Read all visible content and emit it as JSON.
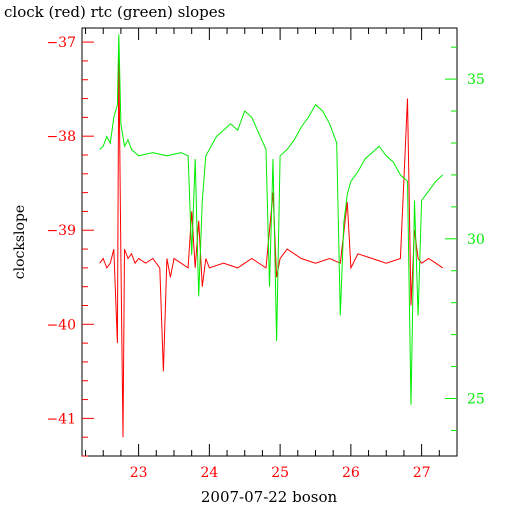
{
  "chart_data": {
    "type": "line",
    "title": "clock (red) rtc (green) slopes",
    "xlabel": "2007-07-22 boson",
    "ylabel": "clockslope",
    "x_ticks": [
      "23",
      "24",
      "25",
      "26",
      "27"
    ],
    "xlim": [
      22.2,
      27.5
    ],
    "y_left_ticks": [
      "−37",
      "−38",
      "−39",
      "−40",
      "−41"
    ],
    "ylim_left": [
      -41.4,
      -36.85
    ],
    "y_right_ticks": [
      "35",
      "30",
      "25"
    ],
    "ylim_right": [
      23.2,
      36.6
    ],
    "colors": {
      "clock": "#ff0000",
      "rtc": "#00ee00",
      "axis": "#000000"
    },
    "series": [
      {
        "name": "clock (red)",
        "axis": "left",
        "color": "#ff0000",
        "x": [
          22.45,
          22.5,
          22.55,
          22.6,
          22.65,
          22.7,
          22.72,
          22.75,
          22.78,
          22.8,
          22.85,
          22.9,
          22.95,
          23.0,
          23.1,
          23.2,
          23.3,
          23.35,
          23.4,
          23.45,
          23.5,
          23.6,
          23.7,
          23.75,
          23.8,
          23.85,
          23.9,
          23.95,
          24.0,
          24.2,
          24.4,
          24.5,
          24.6,
          24.8,
          24.9,
          24.95,
          25.0,
          25.1,
          25.3,
          25.5,
          25.7,
          25.85,
          25.95,
          26.0,
          26.1,
          26.3,
          26.5,
          26.7,
          26.8,
          26.85,
          26.9,
          26.95,
          27.0,
          27.1,
          27.2,
          27.3
        ],
        "y": [
          -39.35,
          -39.3,
          -39.4,
          -39.35,
          -39.2,
          -40.2,
          -37.1,
          -39.3,
          -41.2,
          -39.2,
          -39.3,
          -39.25,
          -39.35,
          -39.3,
          -39.35,
          -39.3,
          -39.4,
          -40.5,
          -39.3,
          -39.5,
          -39.3,
          -39.35,
          -39.4,
          -38.8,
          -39.4,
          -38.9,
          -39.6,
          -39.3,
          -39.4,
          -39.35,
          -39.4,
          -39.35,
          -39.3,
          -39.4,
          -38.6,
          -39.5,
          -39.3,
          -39.2,
          -39.3,
          -39.35,
          -39.3,
          -39.35,
          -38.7,
          -39.4,
          -39.25,
          -39.3,
          -39.35,
          -39.3,
          -37.6,
          -39.8,
          -39.0,
          -39.3,
          -39.35,
          -39.3,
          -39.35,
          -39.4
        ]
      },
      {
        "name": "rtc (green)",
        "axis": "right",
        "color": "#00ee00",
        "x": [
          22.45,
          22.5,
          22.55,
          22.6,
          22.65,
          22.7,
          22.72,
          22.75,
          22.8,
          22.85,
          22.9,
          22.95,
          23.0,
          23.2,
          23.4,
          23.6,
          23.7,
          23.75,
          23.8,
          23.85,
          23.9,
          23.95,
          24.0,
          24.1,
          24.2,
          24.3,
          24.4,
          24.5,
          24.6,
          24.7,
          24.8,
          24.85,
          24.9,
          24.95,
          25.0,
          25.1,
          25.2,
          25.3,
          25.4,
          25.5,
          25.6,
          25.7,
          25.8,
          25.85,
          25.9,
          25.95,
          26.0,
          26.1,
          26.2,
          26.3,
          26.4,
          26.5,
          26.6,
          26.7,
          26.8,
          26.85,
          26.9,
          26.95,
          27.0,
          27.1,
          27.2,
          27.3
        ],
        "y": [
          32.8,
          32.9,
          33.2,
          33.0,
          33.8,
          34.2,
          36.4,
          33.6,
          32.9,
          33.1,
          32.8,
          32.7,
          32.6,
          32.7,
          32.6,
          32.7,
          32.6,
          29.5,
          32.5,
          28.2,
          31.2,
          32.6,
          32.8,
          33.2,
          33.4,
          33.6,
          33.4,
          34.0,
          33.8,
          33.3,
          32.8,
          28.5,
          32.5,
          26.8,
          32.6,
          32.8,
          33.1,
          33.5,
          33.8,
          34.2,
          34.0,
          33.6,
          33.0,
          27.6,
          30.5,
          31.4,
          31.8,
          32.1,
          32.5,
          32.7,
          32.9,
          32.6,
          32.4,
          32.0,
          31.8,
          24.8,
          31.2,
          27.6,
          31.2,
          31.5,
          31.8,
          32.0
        ]
      }
    ]
  }
}
